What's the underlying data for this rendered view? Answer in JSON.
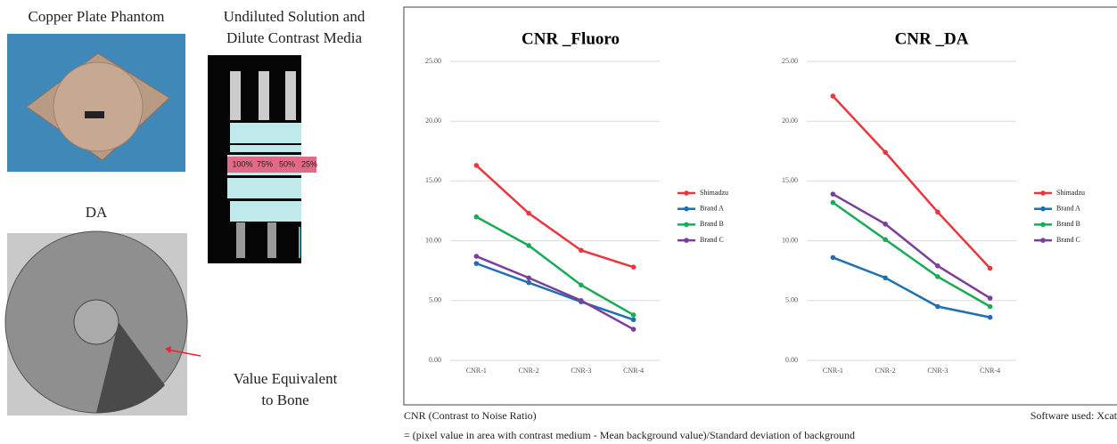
{
  "captions": {
    "copper": "Copper Plate Phantom",
    "solution": [
      "Undiluted Solution and",
      "Dilute Contrast Media"
    ],
    "da": "DA",
    "bone": [
      "Value Equivalent",
      "to Bone"
    ]
  },
  "solution_labels": [
    "100%",
    "75%",
    "50%",
    "25%"
  ],
  "chart_data": [
    {
      "type": "line",
      "title": "CNR _Fluoro",
      "categories": [
        "CNR-1",
        "CNR-2",
        "CNR-3",
        "CNR-4"
      ],
      "series": [
        {
          "name": "Shimadzu",
          "color": "#e8383d",
          "values": [
            16.3,
            12.3,
            9.2,
            7.8
          ]
        },
        {
          "name": "Brand A",
          "color": "#1f6fb2",
          "values": [
            8.1,
            6.5,
            4.9,
            3.4
          ]
        },
        {
          "name": "Brand B",
          "color": "#1aab55",
          "values": [
            12.0,
            9.6,
            6.3,
            3.8
          ]
        },
        {
          "name": "Brand C",
          "color": "#7a3f9a",
          "values": [
            8.7,
            6.9,
            5.0,
            2.6
          ]
        }
      ],
      "ylim": [
        0,
        25
      ],
      "yticks": [
        {
          "value": 0,
          "label": "0.00"
        },
        {
          "value": 5,
          "label": "5.00"
        },
        {
          "value": 10,
          "label": "10.00"
        },
        {
          "value": 15,
          "label": "15.00"
        },
        {
          "value": 20,
          "label": "20.00"
        },
        {
          "value": 25,
          "label": "25.00"
        }
      ],
      "grid": true,
      "legend": "right"
    },
    {
      "type": "line",
      "title": "CNR _DA",
      "categories": [
        "CNR-1",
        "CNR-2",
        "CNR-3",
        "CNR-4"
      ],
      "series": [
        {
          "name": "Shimadzu",
          "color": "#e8383d",
          "values": [
            22.1,
            17.4,
            12.4,
            7.7
          ]
        },
        {
          "name": "Brand A",
          "color": "#1f6fb2",
          "values": [
            8.6,
            6.9,
            4.5,
            3.6
          ]
        },
        {
          "name": "Brand B",
          "color": "#1aab55",
          "values": [
            13.2,
            10.1,
            7.0,
            4.5
          ]
        },
        {
          "name": "Brand C",
          "color": "#7a3f9a",
          "values": [
            13.9,
            11.4,
            7.9,
            5.2
          ]
        }
      ],
      "ylim": [
        0,
        25
      ],
      "yticks": [
        {
          "value": 0,
          "label": "0.00"
        },
        {
          "value": 5,
          "label": "5.00"
        },
        {
          "value": 10,
          "label": "10.00"
        },
        {
          "value": 15,
          "label": "15.00"
        },
        {
          "value": 20,
          "label": "20.00"
        },
        {
          "value": 25,
          "label": "25.00"
        }
      ],
      "grid": true,
      "legend": "right"
    }
  ],
  "notes": {
    "definition": "CNR (Contrast to Noise Ratio)",
    "formula": "= (pixel value in area with contrast medium - Mean background value)/Standard deviation of background",
    "software": "Software used: Xcat"
  }
}
